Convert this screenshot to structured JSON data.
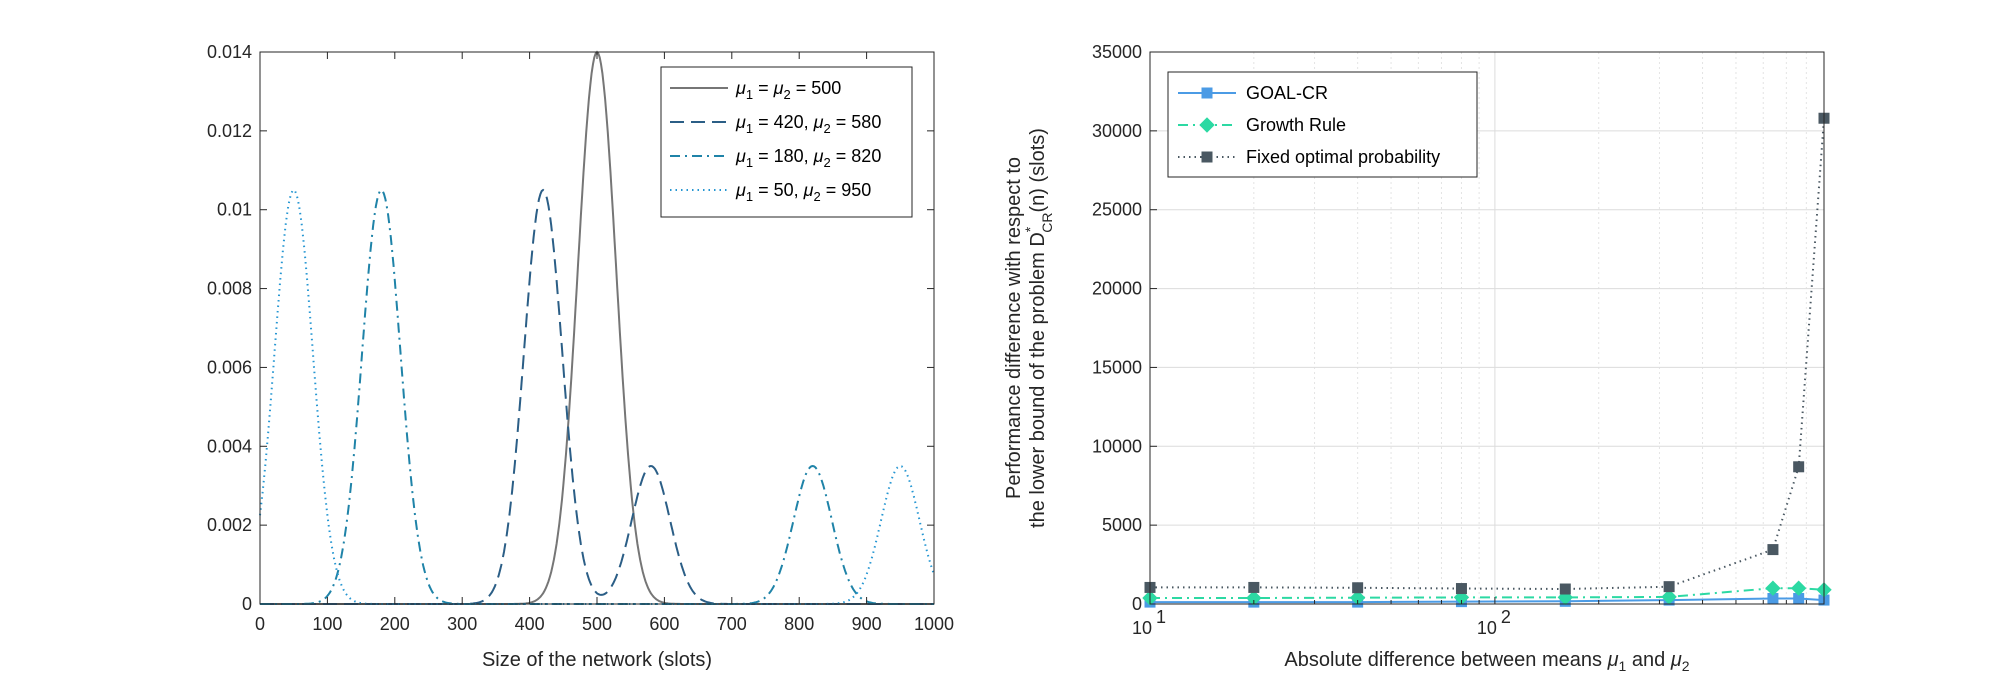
{
  "chart_data": [
    {
      "type": "line",
      "title": "",
      "xlabel": "Size of the network (slots)",
      "ylabel": "",
      "xlim": [
        0,
        1000
      ],
      "ylim": [
        0,
        0.014
      ],
      "xticks": [
        "0",
        "100",
        "200",
        "300",
        "400",
        "500",
        "600",
        "700",
        "800",
        "900",
        "1000"
      ],
      "yticks": [
        "0",
        "0.002",
        "0.004",
        "0.006",
        "0.008",
        "0.01",
        "0.012",
        "0.014"
      ],
      "grid": false,
      "legend_position": "top-right",
      "series": [
        {
          "name": "μ1 = μ2 = 500",
          "legend_main": "= ",
          "legend_after": " = 500",
          "color": "#767676",
          "style": "solid",
          "peaks": [
            {
              "mu": 500,
              "sigma": 28.5,
              "height": 0.014
            }
          ]
        },
        {
          "name": "μ1 = 420, μ2 = 580",
          "legend_main": "= 420, ",
          "legend_after": " = 580",
          "color": "#2b5e86",
          "style": "dashed",
          "peaks": [
            {
              "mu": 420,
              "sigma": 28.5,
              "height": 0.0105
            },
            {
              "mu": 580,
              "sigma": 28.5,
              "height": 0.0035
            }
          ]
        },
        {
          "name": "μ1 = 180, μ2 = 820",
          "legend_main": "= 180, ",
          "legend_after": " = 820",
          "color": "#1f83a8",
          "style": "dashdot",
          "peaks": [
            {
              "mu": 180,
              "sigma": 28.5,
              "height": 0.0105
            },
            {
              "mu": 820,
              "sigma": 28.5,
              "height": 0.0035
            }
          ]
        },
        {
          "name": "μ1 = 50, μ2 = 950",
          "legend_main": "= 50, ",
          "legend_after": " = 950",
          "color": "#2596d2",
          "style": "dotted",
          "peaks": [
            {
              "mu": 50,
              "sigma": 28.5,
              "height": 0.0105
            },
            {
              "mu": 950,
              "sigma": 28.5,
              "height": 0.0035
            }
          ]
        }
      ]
    },
    {
      "type": "line",
      "title": "",
      "xlabel": "Absolute difference between means μ1 and μ2",
      "xlabel_prefix": "Absolute difference between means ",
      "xlabel_and": " and ",
      "ylabel_line1": "Performance difference with respect to",
      "ylabel_line2": "the lower bound of the problem D",
      "ylabel_super": "*",
      "ylabel_sub": "CR",
      "ylabel_tail": "(n) (slots)",
      "xscale": "log",
      "xlim": [
        10,
        900
      ],
      "ylim": [
        0,
        35000
      ],
      "xticks": [
        "10",
        "10"
      ],
      "xtick_exponents": [
        "1",
        "2"
      ],
      "yticks": [
        "0",
        "5000",
        "10000",
        "15000",
        "20000",
        "25000",
        "30000",
        "35000"
      ],
      "grid": true,
      "legend_position": "top-left",
      "x": [
        10,
        20,
        40,
        80,
        160,
        320,
        640,
        760,
        900
      ],
      "series": [
        {
          "name": "GOAL-CR",
          "color": "#4b9be5",
          "marker": "square",
          "style": "solid",
          "values": [
            120,
            120,
            120,
            150,
            170,
            250,
            350,
            350,
            250
          ]
        },
        {
          "name": "Growth Rule",
          "color": "#2cd9a3",
          "marker": "diamond",
          "style": "dashdot",
          "values": [
            380,
            380,
            400,
            420,
            420,
            450,
            1000,
            1000,
            900
          ]
        },
        {
          "name": "Fixed optimal probability",
          "color": "#4a5862",
          "marker": "square",
          "style": "dotted",
          "values": [
            1050,
            1050,
            1030,
            980,
            950,
            1100,
            3450,
            8700,
            30800
          ]
        }
      ]
    }
  ]
}
